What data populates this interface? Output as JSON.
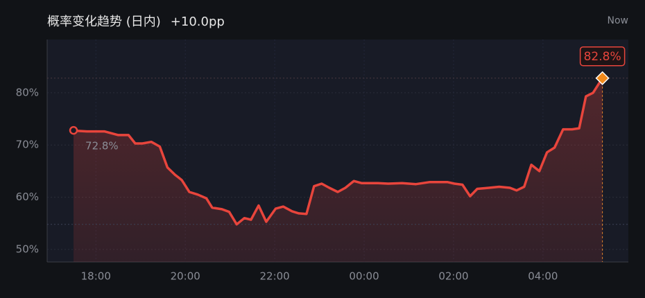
{
  "chart_data": {
    "type": "line",
    "title": "概率变化趋势 (日内)",
    "change": "+10.0pp",
    "now_label": "Now",
    "color": "#e8453c",
    "x": [
      17.5,
      17.6,
      17.8,
      18.19,
      18.5,
      18.73,
      18.88,
      19.04,
      19.24,
      19.43,
      19.6,
      19.77,
      19.92,
      20.09,
      20.28,
      20.47,
      20.6,
      20.82,
      20.98,
      21.15,
      21.32,
      21.47,
      21.64,
      21.81,
      22.02,
      22.19,
      22.39,
      22.54,
      22.71,
      22.88,
      23.05,
      23.22,
      23.41,
      23.58,
      23.77,
      23.94,
      24.31,
      24.54,
      24.85,
      25.16,
      25.47,
      25.86,
      26.02,
      26.2,
      26.37,
      26.53,
      26.79,
      27.02,
      27.26,
      27.41,
      27.58,
      27.74,
      27.92,
      28.09,
      28.26,
      28.45,
      28.65,
      28.81,
      28.96,
      29.12,
      29.33
    ],
    "values": [
      72.8,
      72.7,
      72.6,
      72.6,
      71.9,
      71.9,
      70.3,
      70.3,
      70.6,
      69.7,
      65.7,
      64.3,
      63.3,
      61.0,
      60.5,
      59.8,
      58.0,
      57.7,
      57.2,
      54.8,
      56.0,
      55.7,
      58.4,
      55.3,
      57.8,
      58.2,
      57.3,
      56.9,
      56.8,
      62.1,
      62.6,
      61.8,
      61.0,
      61.8,
      63.1,
      62.7,
      62.7,
      62.6,
      62.7,
      62.5,
      62.9,
      62.9,
      62.6,
      62.4,
      60.2,
      61.6,
      61.8,
      62.0,
      61.8,
      61.3,
      62.0,
      66.2,
      65.0,
      68.6,
      69.5,
      73.0,
      73.0,
      73.2,
      79.3,
      80.0,
      82.8
    ],
    "value_labels": [
      "72.8%",
      null,
      null,
      null,
      null,
      null,
      null,
      null,
      null,
      null,
      null,
      null,
      null,
      null,
      null,
      null,
      null,
      null,
      null,
      null,
      null,
      null,
      null,
      null,
      null,
      null,
      null,
      null,
      null,
      null,
      null,
      null,
      null,
      null,
      null,
      null,
      null,
      null,
      null,
      null,
      null,
      null,
      null,
      null,
      null,
      null,
      null,
      null,
      null,
      null,
      null,
      null,
      null,
      null,
      null,
      null,
      null,
      null,
      null,
      null,
      "82.8%"
    ],
    "xlim": [
      16.91,
      29.91
    ],
    "xticks": [
      {
        "value": 18,
        "label": "18:00"
      },
      {
        "value": 20,
        "label": "20:00"
      },
      {
        "value": 22,
        "label": "22:00"
      },
      {
        "value": 24,
        "label": "00:00"
      },
      {
        "value": 26,
        "label": "02:00"
      },
      {
        "value": 28,
        "label": "04:00"
      }
    ],
    "ylim": [
      47.6,
      90.2
    ],
    "yticks": [
      {
        "value": 50,
        "label": "50%"
      },
      {
        "value": 60,
        "label": "60%"
      },
      {
        "value": 70,
        "label": "70%"
      },
      {
        "value": 80,
        "label": "80%"
      }
    ],
    "grid": true
  }
}
